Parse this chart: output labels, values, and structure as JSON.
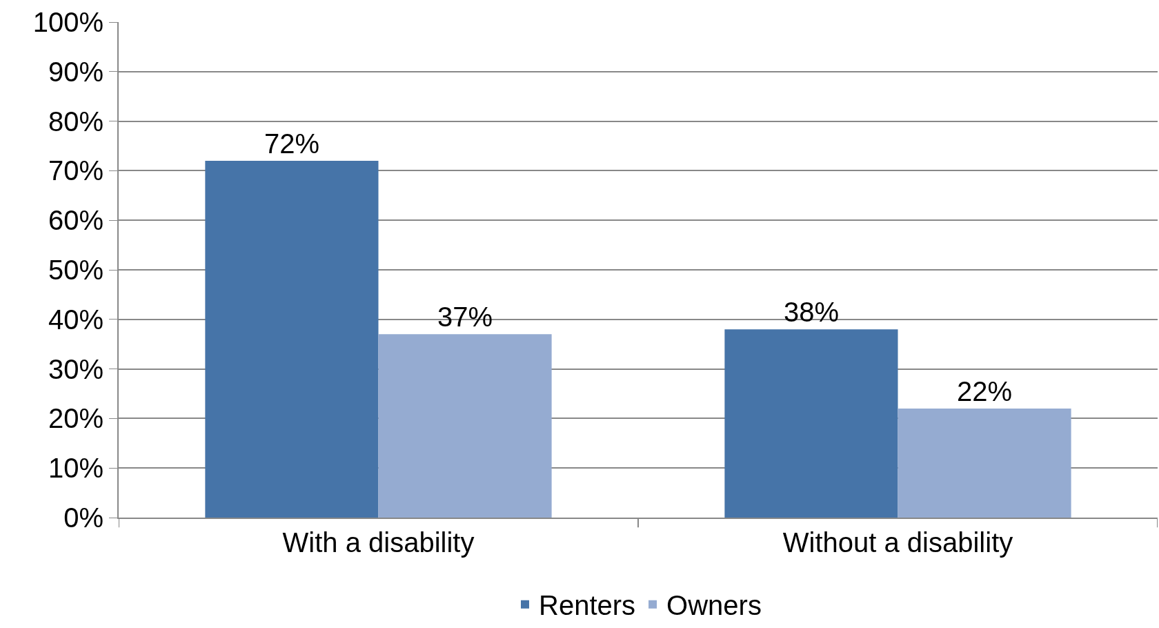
{
  "chart_data": {
    "type": "bar",
    "categories": [
      "With a disability",
      "Without a disability"
    ],
    "series": [
      {
        "name": "Renters",
        "color": "#4674a8",
        "values": [
          72,
          38
        ],
        "value_labels": [
          "72%",
          "38%"
        ]
      },
      {
        "name": "Owners",
        "color": "#95abd1",
        "values": [
          37,
          22
        ],
        "value_labels": [
          "37%",
          "22%"
        ]
      }
    ],
    "ylim": [
      0,
      100
    ],
    "yticks": [
      {
        "value": 0,
        "label": "0%"
      },
      {
        "value": 10,
        "label": "10%"
      },
      {
        "value": 20,
        "label": "20%"
      },
      {
        "value": 30,
        "label": "30%"
      },
      {
        "value": 40,
        "label": "40%"
      },
      {
        "value": 50,
        "label": "50%"
      },
      {
        "value": 60,
        "label": "60%"
      },
      {
        "value": 70,
        "label": "70%"
      },
      {
        "value": 80,
        "label": "80%"
      },
      {
        "value": 90,
        "label": "90%"
      },
      {
        "value": 100,
        "label": "100%"
      }
    ],
    "grid": "y",
    "legend": "bottom"
  }
}
